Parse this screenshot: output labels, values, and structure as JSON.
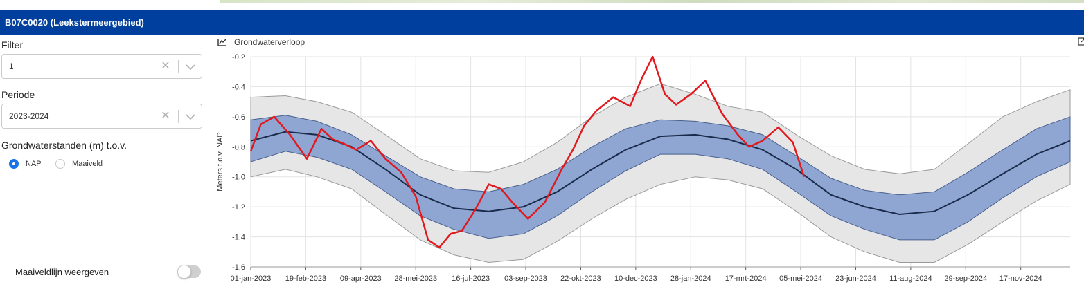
{
  "window": {
    "title": "B07C0020 (Leekstermeergebied)"
  },
  "filter": {
    "label": "Filter",
    "value": "1"
  },
  "periode": {
    "label": "Periode",
    "value": "2023-2024"
  },
  "grondwater": {
    "label": "Grondwaterstanden (m) t.o.v.",
    "options": [
      {
        "label": "NAP",
        "selected": true
      },
      {
        "label": "Maaiveld",
        "selected": false
      }
    ]
  },
  "maaiveld_toggle": {
    "label": "Maaiveldlijn weergeven",
    "on": false
  },
  "chart_header": {
    "title": "Grondwaterverloop"
  },
  "colors": {
    "header_bar": "#003f9e",
    "measured_line": "#e0191e",
    "median_line": "#1a2a4a",
    "inner_band": "#8fa6d2",
    "outer_band": "#e6e6e6",
    "radio_selected": "#1a73e8"
  },
  "chart_data": {
    "type": "line",
    "title": "",
    "ylabel": "Meters t.o.v. NAP",
    "xlabel": "",
    "ylim": [
      -1.6,
      -0.2
    ],
    "yticks": [
      "-0.2",
      "-0.4",
      "-0.6",
      "-0.8",
      "-1.0",
      "-1.2",
      "-1.4",
      "-1.6"
    ],
    "xlim": [
      "2023-01-01",
      "2024-12-31"
    ],
    "xtick_labels": [
      "01-jan-2023",
      "19-feb-2023",
      "09-apr-2023",
      "28-mei-2023",
      "16-jul-2023",
      "03-sep-2023",
      "22-okt-2023",
      "10-dec-2023",
      "28-jan-2024",
      "17-mrt-2024",
      "05-mei-2024",
      "23-jun-2024",
      "11-aug-2024",
      "29-sep-2024",
      "17-nov-2024"
    ],
    "xtick_dates": [
      "2023-01-01",
      "2023-02-19",
      "2023-04-09",
      "2023-05-28",
      "2023-07-16",
      "2023-09-03",
      "2023-10-22",
      "2023-12-10",
      "2024-01-28",
      "2024-03-17",
      "2024-05-05",
      "2024-06-23",
      "2024-08-11",
      "2024-09-29",
      "2024-11-17"
    ],
    "grid": true,
    "series": [
      {
        "role": "range-outer",
        "x": [
          "2023-01-01",
          "2023-02-01",
          "2023-03-01",
          "2023-04-01",
          "2023-05-01",
          "2023-06-01",
          "2023-07-01",
          "2023-08-01",
          "2023-09-01",
          "2023-10-01",
          "2023-11-01",
          "2023-12-01",
          "2024-01-01",
          "2024-02-01",
          "2024-03-01",
          "2024-04-01",
          "2024-05-01",
          "2024-06-01",
          "2024-07-01",
          "2024-08-01",
          "2024-09-01",
          "2024-10-01",
          "2024-11-01",
          "2024-12-01",
          "2024-12-31"
        ],
        "upper": [
          -0.47,
          -0.46,
          -0.5,
          -0.57,
          -0.72,
          -0.88,
          -0.96,
          -0.97,
          -0.9,
          -0.77,
          -0.6,
          -0.47,
          -0.38,
          -0.45,
          -0.53,
          -0.57,
          -0.72,
          -0.86,
          -0.95,
          -0.98,
          -0.95,
          -0.78,
          -0.6,
          -0.5,
          -0.42
        ],
        "lower": [
          -1.0,
          -0.95,
          -1.0,
          -1.08,
          -1.25,
          -1.42,
          -1.52,
          -1.57,
          -1.55,
          -1.43,
          -1.28,
          -1.15,
          -1.05,
          -1.0,
          -1.02,
          -1.08,
          -1.23,
          -1.4,
          -1.5,
          -1.57,
          -1.57,
          -1.45,
          -1.3,
          -1.16,
          -1.05
        ]
      },
      {
        "role": "range-inner",
        "x": [
          "2023-01-01",
          "2023-02-01",
          "2023-03-01",
          "2023-04-01",
          "2023-05-01",
          "2023-06-01",
          "2023-07-01",
          "2023-08-01",
          "2023-09-01",
          "2023-10-01",
          "2023-11-01",
          "2023-12-01",
          "2024-01-01",
          "2024-02-01",
          "2024-03-01",
          "2024-04-01",
          "2024-05-01",
          "2024-06-01",
          "2024-07-01",
          "2024-08-01",
          "2024-09-01",
          "2024-10-01",
          "2024-11-01",
          "2024-12-01",
          "2024-12-31"
        ],
        "upper": [
          -0.62,
          -0.59,
          -0.63,
          -0.72,
          -0.86,
          -1.0,
          -1.08,
          -1.1,
          -1.05,
          -0.95,
          -0.8,
          -0.68,
          -0.62,
          -0.63,
          -0.66,
          -0.72,
          -0.86,
          -1.01,
          -1.09,
          -1.12,
          -1.1,
          -0.97,
          -0.82,
          -0.68,
          -0.6
        ],
        "lower": [
          -0.9,
          -0.83,
          -0.87,
          -0.95,
          -1.1,
          -1.26,
          -1.35,
          -1.41,
          -1.38,
          -1.26,
          -1.1,
          -0.96,
          -0.85,
          -0.85,
          -0.88,
          -0.95,
          -1.1,
          -1.26,
          -1.35,
          -1.42,
          -1.42,
          -1.3,
          -1.14,
          -1.0,
          -0.9
        ]
      },
      {
        "role": "median",
        "x": [
          "2023-01-01",
          "2023-02-01",
          "2023-03-01",
          "2023-04-01",
          "2023-05-01",
          "2023-06-01",
          "2023-07-01",
          "2023-08-01",
          "2023-09-01",
          "2023-10-01",
          "2023-11-01",
          "2023-12-01",
          "2024-01-01",
          "2024-02-01",
          "2024-03-01",
          "2024-04-01",
          "2024-05-01",
          "2024-06-01",
          "2024-07-01",
          "2024-08-01",
          "2024-09-01",
          "2024-10-01",
          "2024-11-01",
          "2024-12-01",
          "2024-12-31"
        ],
        "values": [
          -0.76,
          -0.7,
          -0.72,
          -0.8,
          -0.95,
          -1.12,
          -1.21,
          -1.23,
          -1.2,
          -1.1,
          -0.95,
          -0.82,
          -0.73,
          -0.72,
          -0.75,
          -0.82,
          -0.95,
          -1.12,
          -1.2,
          -1.25,
          -1.23,
          -1.12,
          -0.98,
          -0.85,
          -0.76
        ]
      },
      {
        "role": "measured",
        "x": [
          "2023-01-01",
          "2023-01-10",
          "2023-01-22",
          "2023-02-05",
          "2023-02-20",
          "2023-03-05",
          "2023-03-15",
          "2023-03-25",
          "2023-04-05",
          "2023-04-18",
          "2023-05-01",
          "2023-05-15",
          "2023-05-28",
          "2023-06-08",
          "2023-06-18",
          "2023-06-28",
          "2023-07-08",
          "2023-07-20",
          "2023-08-01",
          "2023-08-12",
          "2023-08-22",
          "2023-09-05",
          "2023-09-20",
          "2023-10-05",
          "2023-10-15",
          "2023-10-25",
          "2023-11-05",
          "2023-11-20",
          "2023-12-05",
          "2023-12-15",
          "2023-12-25",
          "2024-01-05",
          "2024-01-15",
          "2024-01-28",
          "2024-02-10",
          "2024-02-25",
          "2024-03-10",
          "2024-03-20",
          "2024-04-01",
          "2024-04-15",
          "2024-04-28",
          "2024-05-08"
        ],
        "values": [
          -0.83,
          -0.65,
          -0.6,
          -0.72,
          -0.88,
          -0.68,
          -0.75,
          -0.78,
          -0.82,
          -0.76,
          -0.88,
          -0.97,
          -1.13,
          -1.42,
          -1.47,
          -1.38,
          -1.36,
          -1.22,
          -1.05,
          -1.08,
          -1.17,
          -1.28,
          -1.17,
          -0.95,
          -0.82,
          -0.66,
          -0.56,
          -0.47,
          -0.53,
          -0.35,
          -0.2,
          -0.45,
          -0.52,
          -0.45,
          -0.36,
          -0.58,
          -0.72,
          -0.8,
          -0.76,
          -0.67,
          -0.77,
          -1.0
        ]
      }
    ]
  }
}
